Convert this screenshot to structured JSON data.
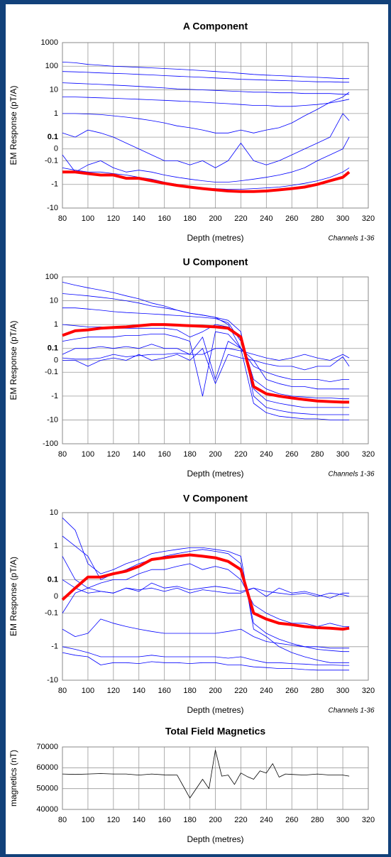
{
  "chart_data": [
    {
      "type": "line",
      "title": "A Component",
      "xlabel": "Depth (metres)",
      "ylabel": "EM Response (pT/A)",
      "annotation": "Channels 1-36",
      "x": [
        80,
        90,
        100,
        110,
        120,
        130,
        140,
        150,
        160,
        170,
        180,
        190,
        200,
        210,
        220,
        230,
        240,
        250,
        260,
        270,
        280,
        290,
        300,
        305
      ],
      "xlim": [
        80,
        320
      ],
      "xticks": [
        80,
        100,
        120,
        140,
        160,
        180,
        200,
        220,
        240,
        260,
        280,
        300,
        320
      ],
      "ylim": [
        -10,
        1000
      ],
      "yticks": [
        1000,
        100,
        10,
        1,
        0.1,
        0,
        -0.1,
        -1,
        -10
      ],
      "yscale": "symlog",
      "linthresh": 0.1,
      "grid": true,
      "series": [
        {
          "color": "#0000ff",
          "values": [
            150,
            140,
            120,
            110,
            100,
            95,
            90,
            85,
            80,
            75,
            70,
            65,
            60,
            55,
            50,
            45,
            42,
            40,
            38,
            36,
            34,
            32,
            30,
            30
          ]
        },
        {
          "color": "#0000ff",
          "values": [
            60,
            58,
            55,
            52,
            50,
            48,
            45,
            43,
            40,
            38,
            36,
            34,
            32,
            30,
            28,
            27,
            26,
            25,
            24,
            23,
            22,
            22,
            21,
            21
          ]
        },
        {
          "color": "#0000ff",
          "values": [
            20,
            19,
            18,
            17,
            16,
            15,
            14,
            13,
            12,
            11,
            10.5,
            10,
            9.5,
            9,
            8.5,
            8,
            8,
            7.5,
            7.5,
            7,
            7,
            7,
            6.5,
            6.5
          ]
        },
        {
          "color": "#0000ff",
          "values": [
            5,
            5,
            4.8,
            4.6,
            4.4,
            4.2,
            4,
            3.8,
            3.6,
            3.4,
            3.2,
            3,
            2.8,
            2.6,
            2.4,
            2.2,
            2.2,
            2,
            2,
            2.2,
            2.4,
            2.8,
            3.5,
            4
          ]
        },
        {
          "color": "#0000ff",
          "values": [
            1,
            1,
            0.95,
            0.9,
            0.8,
            0.7,
            0.6,
            0.5,
            0.4,
            0.3,
            0.25,
            0.2,
            0.15,
            0.15,
            0.2,
            0.15,
            0.2,
            0.25,
            0.4,
            0.8,
            1.5,
            3,
            5,
            8
          ]
        },
        {
          "color": "#0000ff",
          "values": [
            0.15,
            0.1,
            0.2,
            0.15,
            0.1,
            0.05,
            0,
            -0.05,
            -0.1,
            -0.1,
            -0.15,
            -0.1,
            -0.2,
            -0.1,
            0.05,
            -0.1,
            -0.15,
            -0.1,
            -0.05,
            0,
            0.05,
            0.1,
            1,
            0.5
          ]
        },
        {
          "color": "#0000ff",
          "values": [
            -0.05,
            -0.3,
            -0.15,
            -0.1,
            -0.2,
            -0.3,
            -0.25,
            -0.3,
            -0.4,
            -0.5,
            -0.6,
            -0.7,
            -0.8,
            -0.8,
            -0.7,
            -0.6,
            -0.5,
            -0.4,
            -0.3,
            -0.2,
            -0.1,
            -0.05,
            0,
            0.1
          ]
        },
        {
          "color": "#0000ff",
          "values": [
            -0.2,
            -0.25,
            -0.3,
            -0.3,
            -0.35,
            -0.4,
            -0.5,
            -0.6,
            -0.8,
            -1,
            -1.2,
            -1.4,
            -1.5,
            -1.6,
            -1.6,
            -1.5,
            -1.4,
            -1.3,
            -1.1,
            -0.9,
            -0.7,
            -0.5,
            -0.3,
            -0.2
          ]
        },
        {
          "color": "#ff0000",
          "values": [
            -0.3,
            -0.3,
            -0.35,
            -0.4,
            -0.4,
            -0.55,
            -0.55,
            -0.7,
            -0.9,
            -1.1,
            -1.3,
            -1.5,
            -1.7,
            -1.9,
            -2,
            -2,
            -1.9,
            -1.7,
            -1.5,
            -1.3,
            -1,
            -0.7,
            -0.5,
            -0.3
          ]
        }
      ]
    },
    {
      "type": "line",
      "title": "U Component",
      "xlabel": "Depth (metres)",
      "ylabel": "EM Response (pT/A)",
      "annotation": "Channels 1-36",
      "x": [
        80,
        90,
        100,
        110,
        120,
        130,
        140,
        150,
        160,
        170,
        180,
        190,
        200,
        210,
        220,
        230,
        240,
        250,
        260,
        270,
        280,
        290,
        300,
        305
      ],
      "xlim": [
        80,
        320
      ],
      "xticks": [
        80,
        100,
        120,
        140,
        160,
        180,
        200,
        220,
        240,
        260,
        280,
        300,
        320
      ],
      "ylim": [
        -100,
        100
      ],
      "yticks": [
        100,
        10,
        1,
        0.1,
        0,
        -0.1,
        -1,
        -10,
        -100
      ],
      "yscale": "symlog",
      "linthresh": 0.1,
      "grid": true,
      "series": [
        {
          "color": "#0000ff",
          "values": [
            60,
            45,
            35,
            28,
            22,
            16,
            12,
            8,
            6,
            4,
            3,
            2.5,
            2,
            1,
            0.1,
            -2,
            -5,
            -7,
            -8,
            -9,
            -9,
            -10,
            -10,
            -10
          ]
        },
        {
          "color": "#0000ff",
          "values": [
            20,
            18,
            16,
            14,
            12,
            10,
            8,
            6,
            5,
            4,
            3,
            2.5,
            2,
            1.5,
            0.5,
            -1,
            -3,
            -4,
            -5,
            -5.5,
            -6,
            -6,
            -6,
            -6
          ]
        },
        {
          "color": "#0000ff",
          "values": [
            5,
            5,
            4.5,
            4,
            3.5,
            3.2,
            3,
            2.8,
            2.6,
            2.4,
            2.2,
            2,
            1.8,
            1.2,
            0.2,
            -0.5,
            -1.5,
            -2,
            -2.5,
            -3,
            -3,
            -3,
            -3,
            -3
          ]
        },
        {
          "color": "#0000ff",
          "values": [
            1,
            0.9,
            0.8,
            0.8,
            0.7,
            0.7,
            0.7,
            0.7,
            0.7,
            0.6,
            0.3,
            0.5,
            1,
            0.8,
            0.3,
            -0.2,
            -0.5,
            -0.8,
            -1,
            -1.1,
            -1.2,
            -1.2,
            -1.3,
            -1.3
          ]
        },
        {
          "color": "#0000ff",
          "values": [
            0.2,
            0.25,
            0.3,
            0.3,
            0.3,
            0.35,
            0.35,
            0.4,
            0.4,
            0.3,
            0.2,
            -1,
            0.5,
            0.4,
            0.1,
            0,
            -0.2,
            -0.3,
            -0.4,
            -0.4,
            -0.5,
            -0.5,
            -0.5,
            -0.5
          ]
        },
        {
          "color": "#0000ff",
          "values": [
            0.05,
            0.1,
            0.1,
            0.12,
            0.1,
            0.12,
            0.1,
            0.15,
            0.1,
            0.1,
            0.05,
            0.3,
            -0.2,
            0.2,
            0.1,
            -0.05,
            -0.1,
            -0.15,
            -0.2,
            -0.2,
            -0.2,
            -0.25,
            -0.2,
            -0.2
          ]
        },
        {
          "color": "#0000ff",
          "values": [
            0,
            0,
            -0.05,
            0,
            0.02,
            0,
            0.05,
            0,
            0.02,
            0.05,
            0,
            0.1,
            -0.3,
            0.05,
            0.02,
            0,
            -0.03,
            -0.05,
            -0.05,
            -0.08,
            -0.05,
            -0.05,
            0.03,
            -0.05
          ]
        },
        {
          "color": "#0000ff",
          "values": [
            0.02,
            0.01,
            0.01,
            0.02,
            0.05,
            0.03,
            0.04,
            0.05,
            0.05,
            0.06,
            0.05,
            0.05,
            0.1,
            0.1,
            0.08,
            0.05,
            0.02,
            0,
            0.02,
            0.05,
            0.02,
            0,
            0.05,
            0.02
          ]
        },
        {
          "color": "#ff0000",
          "values": [
            0.35,
            0.55,
            0.6,
            0.7,
            0.75,
            0.8,
            0.9,
            1,
            1,
            0.95,
            0.9,
            0.85,
            0.8,
            0.7,
            0.3,
            -0.4,
            -0.8,
            -1,
            -1.2,
            -1.4,
            -1.6,
            -1.7,
            -1.8,
            -1.8
          ]
        }
      ]
    },
    {
      "type": "line",
      "title": "V Component",
      "xlabel": "Depth (metres)",
      "ylabel": "EM Response (pT/A)",
      "annotation": "Channels 1-36",
      "x": [
        80,
        90,
        100,
        110,
        120,
        130,
        140,
        150,
        160,
        170,
        180,
        190,
        200,
        210,
        220,
        230,
        240,
        250,
        260,
        270,
        280,
        290,
        300,
        305
      ],
      "xlim": [
        80,
        320
      ],
      "xticks": [
        80,
        100,
        120,
        140,
        160,
        180,
        200,
        220,
        240,
        260,
        280,
        300,
        320
      ],
      "ylim": [
        -10,
        10
      ],
      "yticks": [
        10,
        1,
        0.1,
        0,
        -0.1,
        -1,
        -10
      ],
      "yscale": "symlog",
      "linthresh": 0.1,
      "grid": true,
      "series": [
        {
          "color": "#0000ff",
          "values": [
            7,
            3,
            0.3,
            0.15,
            0.2,
            0.3,
            0.4,
            0.6,
            0.7,
            0.8,
            0.9,
            0.9,
            0.8,
            0.7,
            0.5,
            -0.3,
            -0.5,
            -1,
            -1.5,
            -2,
            -2.5,
            -3,
            -3,
            -3
          ]
        },
        {
          "color": "#0000ff",
          "values": [
            2,
            1,
            0.5,
            0.1,
            0.15,
            0.2,
            0.3,
            0.4,
            0.5,
            0.6,
            0.7,
            0.8,
            0.7,
            0.6,
            0.3,
            -0.2,
            -0.4,
            -0.6,
            -0.8,
            -1,
            -1.2,
            -1.3,
            -1.4,
            -1.4
          ]
        },
        {
          "color": "#0000ff",
          "values": [
            0.5,
            0.1,
            0.05,
            0.08,
            0.1,
            0.1,
            0.15,
            0.2,
            0.2,
            0.25,
            0.3,
            0.2,
            0.25,
            0.2,
            0.1,
            -0.05,
            -0.1,
            -0.15,
            -0.2,
            -0.2,
            -0.25,
            -0.2,
            -0.25,
            -0.25
          ]
        },
        {
          "color": "#0000ff",
          "values": [
            0.1,
            0.05,
            0.02,
            0.03,
            0.02,
            0.05,
            0.04,
            0.05,
            0.03,
            0.05,
            0.02,
            0.04,
            0.03,
            0.02,
            0.02,
            0.05,
            0.03,
            0.02,
            0.01,
            0.02,
            0,
            0.02,
            0.01,
            0
          ]
        },
        {
          "color": "#0000ff",
          "values": [
            -0.1,
            0.02,
            0.05,
            0.03,
            0.02,
            0.05,
            0.03,
            0.08,
            0.05,
            0.06,
            0.04,
            0.05,
            0.06,
            0.05,
            0.03,
            0.05,
            0,
            0.05,
            0.02,
            0.03,
            0.01,
            -0.01,
            0.02,
            0.02
          ]
        },
        {
          "color": "#0000ff",
          "values": [
            -0.3,
            -0.5,
            -0.4,
            -0.15,
            -0.2,
            -0.25,
            -0.3,
            -0.35,
            -0.4,
            -0.4,
            -0.4,
            -0.4,
            -0.4,
            -0.35,
            -0.3,
            -0.5,
            -0.7,
            -0.8,
            -0.9,
            -1,
            -1,
            -1.1,
            -1.1,
            -1.1
          ]
        },
        {
          "color": "#0000ff",
          "values": [
            -1,
            -1.2,
            -1.5,
            -2,
            -2,
            -2,
            -2,
            -1.8,
            -2,
            -2,
            -2,
            -2,
            -2,
            -2.2,
            -2,
            -2.5,
            -3,
            -3,
            -3.2,
            -3.3,
            -3.5,
            -3.5,
            -3.6,
            -3.6
          ]
        },
        {
          "color": "#0000ff",
          "values": [
            -1.5,
            -1.8,
            -2,
            -3.5,
            -3,
            -3,
            -3.2,
            -2.8,
            -3,
            -3,
            -3.2,
            -3,
            -3,
            -3.5,
            -3.5,
            -4,
            -4.2,
            -4.5,
            -4.5,
            -4.8,
            -5,
            -5,
            -5,
            -5
          ]
        },
        {
          "color": "#ff0000",
          "values": [
            -0.02,
            0.05,
            0.12,
            0.12,
            0.15,
            0.18,
            0.25,
            0.4,
            0.45,
            0.5,
            0.55,
            0.5,
            0.45,
            0.35,
            0.2,
            -0.1,
            -0.15,
            -0.2,
            -0.22,
            -0.25,
            -0.27,
            -0.28,
            -0.3,
            -0.28
          ]
        }
      ]
    },
    {
      "type": "line",
      "title": "Total Field Magnetics",
      "xlabel": "Depth (metres)",
      "ylabel": "magnetics (nT)",
      "x": [
        80,
        90,
        100,
        110,
        120,
        130,
        140,
        150,
        160,
        170,
        180,
        190,
        195,
        200,
        205,
        210,
        215,
        220,
        225,
        230,
        235,
        240,
        245,
        250,
        255,
        260,
        270,
        280,
        290,
        300,
        305
      ],
      "xlim": [
        80,
        320
      ],
      "xticks": [
        80,
        100,
        120,
        140,
        160,
        180,
        200,
        220,
        240,
        260,
        280,
        300,
        320
      ],
      "ylim": [
        40000,
        70000
      ],
      "yticks": [
        40000,
        50000,
        60000,
        70000
      ],
      "yscale": "linear",
      "grid": true,
      "series": [
        {
          "color": "#000000",
          "values": [
            57000,
            56800,
            57000,
            57200,
            57000,
            57000,
            56500,
            57000,
            56600,
            56500,
            45500,
            54500,
            50000,
            68500,
            56000,
            56500,
            52000,
            57500,
            55800,
            54500,
            58500,
            57500,
            62000,
            55500,
            57000,
            56800,
            56500,
            57000,
            56500,
            56500,
            56000
          ]
        }
      ]
    }
  ]
}
